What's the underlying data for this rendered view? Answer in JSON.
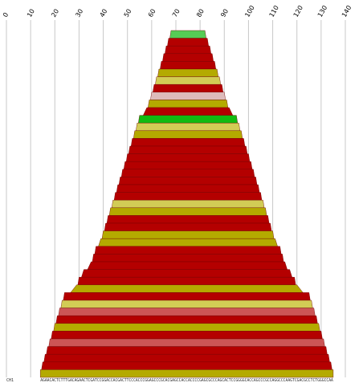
{
  "chart_data": {
    "type": "bar",
    "orientation": "horizontal-centered",
    "x_ticks": [
      0,
      10,
      20,
      30,
      40,
      50,
      60,
      70,
      80,
      90,
      100,
      110,
      120,
      130,
      140
    ],
    "xlim": [
      0,
      140
    ],
    "grid": true,
    "row_label": "CH1",
    "sequence": "AGAACACTCTTTGACAGAACTCGATCCGGACCACGACTTCCCACCCGGAGCCCGCACGAGCCACCACCCCGAGCGCCCAGCACTCCGGGGCACCAGCCCGCCAGGCCCAAGTCGACGCCTCTGGGCCAA",
    "rows": [
      {
        "start": 68,
        "end": 82,
        "color": "#55cc55"
      },
      {
        "start": 67,
        "end": 83,
        "color": "#b40000"
      },
      {
        "start": 66,
        "end": 84,
        "color": "#b40000"
      },
      {
        "start": 65,
        "end": 85,
        "color": "#b40000"
      },
      {
        "start": 64,
        "end": 86,
        "color": "#b40000"
      },
      {
        "start": 63,
        "end": 87,
        "color": "#b4aa00"
      },
      {
        "start": 62,
        "end": 88,
        "color": "#d2cc55"
      },
      {
        "start": 61,
        "end": 89,
        "color": "#b40000"
      },
      {
        "start": 60,
        "end": 90,
        "color": "#ddbbbb"
      },
      {
        "start": 59,
        "end": 91,
        "color": "#b4aa00"
      },
      {
        "start": 58,
        "end": 92,
        "color": "#b40000"
      },
      {
        "start": 55,
        "end": 95,
        "color": "#11bb11"
      },
      {
        "start": 54,
        "end": 96,
        "color": "#d2cc55"
      },
      {
        "start": 53,
        "end": 97,
        "color": "#b4aa00"
      },
      {
        "start": 52,
        "end": 98,
        "color": "#b40000"
      },
      {
        "start": 51,
        "end": 99,
        "color": "#b40000"
      },
      {
        "start": 50,
        "end": 100,
        "color": "#b40000"
      },
      {
        "start": 49,
        "end": 101,
        "color": "#b40000"
      },
      {
        "start": 48,
        "end": 102,
        "color": "#b40000"
      },
      {
        "start": 47,
        "end": 103,
        "color": "#b40000"
      },
      {
        "start": 46,
        "end": 104,
        "color": "#b40000"
      },
      {
        "start": 45,
        "end": 105,
        "color": "#b40000"
      },
      {
        "start": 44,
        "end": 106,
        "color": "#d2cc55"
      },
      {
        "start": 43,
        "end": 107,
        "color": "#b4aa00"
      },
      {
        "start": 42,
        "end": 108,
        "color": "#b40000"
      },
      {
        "start": 41,
        "end": 109,
        "color": "#b40000"
      },
      {
        "start": 40,
        "end": 110,
        "color": "#b4aa00"
      },
      {
        "start": 39,
        "end": 111,
        "color": "#b4aa00"
      },
      {
        "start": 37,
        "end": 113,
        "color": "#b40000"
      },
      {
        "start": 36,
        "end": 114,
        "color": "#b40000"
      },
      {
        "start": 35,
        "end": 115,
        "color": "#b40000"
      },
      {
        "start": 32,
        "end": 117,
        "color": "#b40000"
      },
      {
        "start": 30,
        "end": 119,
        "color": "#b40000"
      },
      {
        "start": 29,
        "end": 120,
        "color": "#b4aa00"
      },
      {
        "start": 24,
        "end": 125,
        "color": "#b40000"
      },
      {
        "start": 23,
        "end": 126,
        "color": "#d2cc55"
      },
      {
        "start": 22,
        "end": 127,
        "color": "#cc5555"
      },
      {
        "start": 21,
        "end": 128,
        "color": "#b40000"
      },
      {
        "start": 20,
        "end": 129,
        "color": "#b4aa00"
      },
      {
        "start": 19,
        "end": 130,
        "color": "#b40000"
      },
      {
        "start": 18,
        "end": 131,
        "color": "#cc5555"
      },
      {
        "start": 17,
        "end": 132,
        "color": "#b40000"
      },
      {
        "start": 16,
        "end": 133,
        "color": "#b40000"
      },
      {
        "start": 15,
        "end": 134,
        "color": "#b40000"
      },
      {
        "start": 14,
        "end": 135,
        "color": "#b4aa00"
      }
    ]
  }
}
